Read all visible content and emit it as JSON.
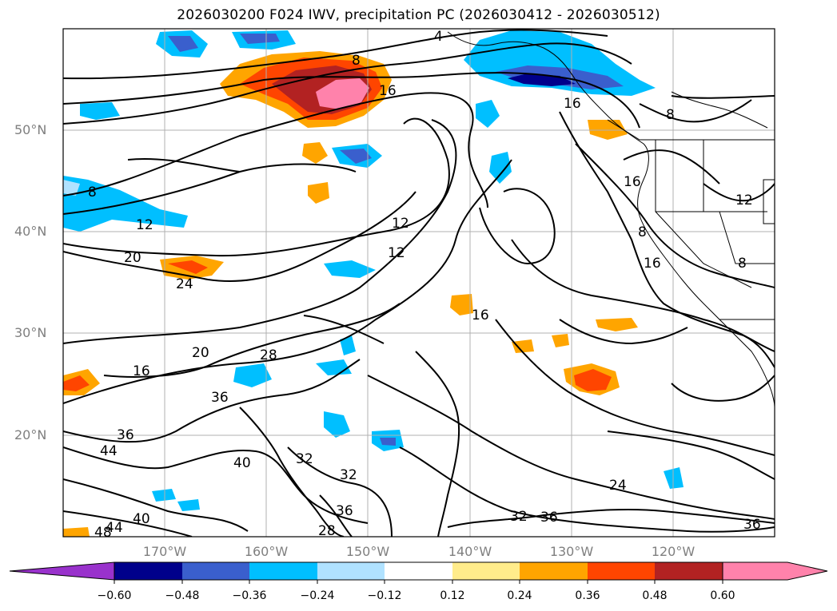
{
  "title": "2026030200 F024 IWV, precipitation PC (2026030412 - 2026030512)",
  "latitude_labels": [
    "50°N",
    "40°N",
    "30°N",
    "20°N"
  ],
  "longitude_labels": [
    "170°W",
    "160°W",
    "150°W",
    "140°W",
    "130°W",
    "120°W"
  ],
  "contour_labels": [
    "4",
    "8",
    "16",
    "8",
    "12",
    "12",
    "12",
    "20",
    "24",
    "16",
    "16",
    "16",
    "12",
    "8",
    "8",
    "16",
    "8",
    "20",
    "28",
    "36",
    "16",
    "36",
    "44",
    "40",
    "32",
    "32",
    "36",
    "28",
    "40",
    "44",
    "48",
    "32",
    "36",
    "24",
    "36"
  ],
  "colorbar": {
    "ticks": [
      "−0.60",
      "−0.48",
      "−0.36",
      "−0.24",
      "−0.12",
      "0.12",
      "0.24",
      "0.36",
      "0.48",
      "0.60"
    ],
    "colors": [
      "#9932cc",
      "#00008b",
      "#3a5fcd",
      "#00bfff",
      "#b0e2ff",
      "#ffffff",
      "#ffec8b",
      "#ffa500",
      "#ff4500",
      "#b22222",
      "#ff82ab"
    ]
  },
  "chart_data": {
    "type": "map",
    "projection": "equirectangular",
    "lon_range": [
      -180,
      -110
    ],
    "lat_range": [
      10,
      60
    ],
    "fields": [
      "IWV contours",
      "precipitation PC shading"
    ]
  }
}
